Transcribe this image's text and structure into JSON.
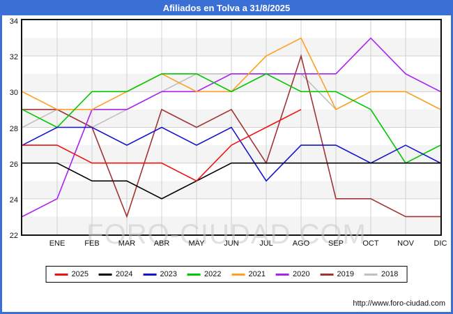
{
  "window": {
    "title": "Afiliados en Tolva a 31/8/2025"
  },
  "chart_data": {
    "type": "line",
    "title": "Afiliados en Tolva a 31/8/2025",
    "categories": [
      "",
      "ENE",
      "FEB",
      "MAR",
      "ABR",
      "MAY",
      "JUN",
      "JUL",
      "AGO",
      "SEP",
      "OCT",
      "NOV",
      "DIC"
    ],
    "note_first_point": "first value sits on the left plot border, one interval before ENE",
    "ylim": [
      22,
      34
    ],
    "yticks": [
      34,
      32,
      30,
      28,
      26,
      24,
      22
    ],
    "grid": "on",
    "legend_position": "bottom",
    "series": [
      {
        "name": "2025",
        "color": "#EE1111",
        "values": [
          27,
          27,
          26,
          26,
          26,
          25,
          27,
          28,
          29
        ]
      },
      {
        "name": "2024",
        "color": "#000000",
        "values": [
          26,
          26,
          25,
          25,
          24,
          25,
          26,
          26,
          26,
          26,
          26,
          26,
          26
        ]
      },
      {
        "name": "2023",
        "color": "#1414CC",
        "values": [
          27,
          28,
          28,
          27,
          28,
          27,
          28,
          25,
          27,
          27,
          26,
          27,
          26
        ]
      },
      {
        "name": "2022",
        "color": "#00C800",
        "values": [
          29,
          28,
          30,
          30,
          31,
          31,
          30,
          31,
          30,
          30,
          29,
          26,
          27
        ]
      },
      {
        "name": "2021",
        "color": "#FFA020",
        "values": [
          30,
          29,
          29,
          30,
          31,
          30,
          30,
          32,
          33,
          29,
          30,
          30,
          29
        ]
      },
      {
        "name": "2020",
        "color": "#AA22EE",
        "values": [
          23,
          24,
          29,
          29,
          30,
          30,
          31,
          31,
          31,
          31,
          33,
          31,
          30
        ]
      },
      {
        "name": "2019",
        "color": "#A03434",
        "values": [
          29,
          29,
          28,
          23,
          29,
          28,
          29,
          26,
          32,
          24,
          24,
          23,
          23
        ]
      },
      {
        "name": "2018",
        "color": "#C0C0C0",
        "values": [
          28,
          29,
          28,
          29,
          30,
          31,
          31,
          31,
          31,
          29,
          30,
          30,
          29
        ]
      }
    ]
  },
  "watermark": "FORO-CIUDAD.COM",
  "footer": {
    "url": "http://www.foro-ciudad.com"
  }
}
